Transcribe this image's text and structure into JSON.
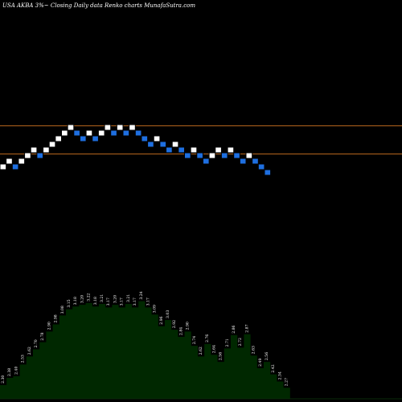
{
  "header": {
    "title": "USA AKBA 3%~  Closing Daily data  Renko  charts MunafaSutra.com"
  },
  "colors": {
    "background": "#000000",
    "up_brick": "#ffffff",
    "down_brick": "#1e6fe0",
    "brick_border": "#000000",
    "level_line": "#b5651d",
    "volume_fill": "#002800",
    "volume_stroke": "#ffffff",
    "label": "#ffffff"
  },
  "chart_data": [
    {
      "type": "renko",
      "direction": [
        "up",
        "up",
        "down",
        "up",
        "up",
        "up",
        "down",
        "up",
        "up",
        "up",
        "up",
        "up",
        "down",
        "down",
        "up",
        "down",
        "up",
        "up",
        "down",
        "up",
        "down",
        "up",
        "down",
        "down",
        "down",
        "up",
        "down",
        "down",
        "up",
        "down",
        "down",
        "up",
        "down",
        "down",
        "up",
        "up",
        "down",
        "up",
        "down",
        "down",
        "up",
        "down",
        "down",
        "down"
      ],
      "steps": [
        0,
        1,
        0,
        1,
        2,
        3,
        2,
        3,
        4,
        5,
        6,
        7,
        6,
        5,
        6,
        5,
        6,
        7,
        6,
        7,
        6,
        7,
        6,
        5,
        4,
        5,
        4,
        3,
        4,
        3,
        2,
        3,
        2,
        1,
        2,
        3,
        2,
        3,
        2,
        1,
        2,
        1,
        0,
        -1
      ],
      "level_lines": [
        "upper",
        "lower"
      ]
    },
    {
      "type": "area",
      "series": [
        {
          "values": [
            2.3,
            2.38,
            2.4,
            2.53,
            2.62,
            2.7,
            2.78,
            2.9,
            2.98,
            3.08,
            3.15,
            3.18,
            3.2,
            3.22,
            3.18,
            3.21,
            3.17,
            3.2,
            3.17,
            3.21,
            3.17,
            3.24,
            3.17,
            3.09,
            2.96,
            3.03,
            2.92,
            2.84,
            2.9,
            2.74,
            2.62,
            2.76,
            2.64,
            2.56,
            2.71,
            2.86,
            2.72,
            2.87,
            2.63,
            2.49,
            2.56,
            2.42,
            2.34,
            2.27
          ],
          "labels": [
            "2.30",
            "2.38",
            "2.40",
            "2.53",
            "2.62",
            "2.70",
            "2.78",
            "2.90",
            "2.98",
            "3.08",
            "3.15",
            "3.18",
            "3.20",
            "3.22",
            "3.18",
            "3.21",
            "3.17",
            "3.20",
            "3.17",
            "3.21",
            "3.17",
            "3.24",
            "3.17",
            "3.09",
            "2.96",
            "3.03",
            "2.92",
            "2.84",
            "2.90",
            "2.74",
            "2.62",
            "2.76",
            "2.64",
            "2.56",
            "2.71",
            "2.86",
            "2.72",
            "2.87",
            "2.63",
            "2.49",
            "2.56",
            "2.42",
            "2.34",
            "2.27"
          ]
        }
      ]
    }
  ]
}
